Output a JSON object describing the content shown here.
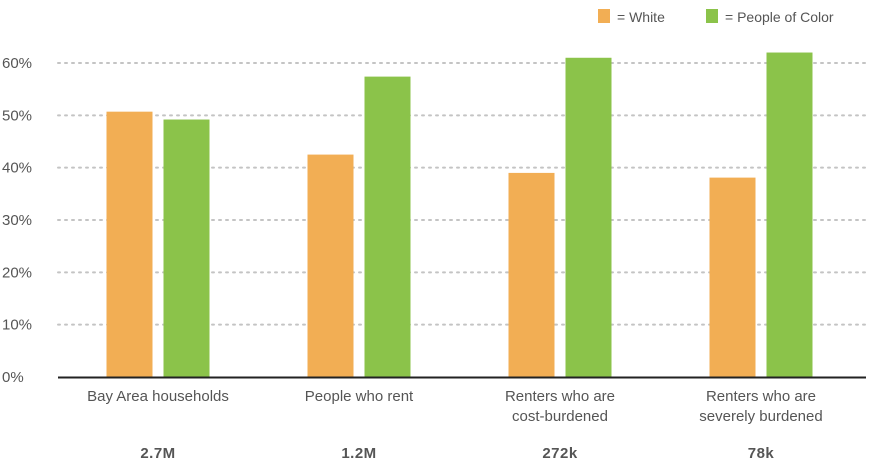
{
  "chart_data": {
    "type": "bar",
    "categories": [
      [
        "Bay Area households"
      ],
      [
        "People who rent"
      ],
      [
        "Renters who are",
        "cost-burdened"
      ],
      [
        "Renters who are",
        "severely burdened"
      ]
    ],
    "totals": [
      "2.7M",
      "1.2M",
      "272k",
      "78k"
    ],
    "series": [
      {
        "name": "White",
        "legend_label": "= White",
        "color": "#F2AE54",
        "values": [
          50.7,
          42.5,
          39.0,
          38.1
        ]
      },
      {
        "name": "People of Color",
        "legend_label": "= People of Color",
        "color": "#8BC34A",
        "values": [
          49.2,
          57.4,
          61.0,
          62.0
        ]
      }
    ],
    "ylim": [
      0,
      60
    ],
    "yticks": [
      "0%",
      "10%",
      "20%",
      "30%",
      "40%",
      "50%",
      "60%"
    ],
    "ytick_values": [
      0,
      10,
      20,
      30,
      40,
      50,
      60
    ],
    "grid": true,
    "legend_position": "top-right",
    "xlabel": "",
    "ylabel": ""
  }
}
